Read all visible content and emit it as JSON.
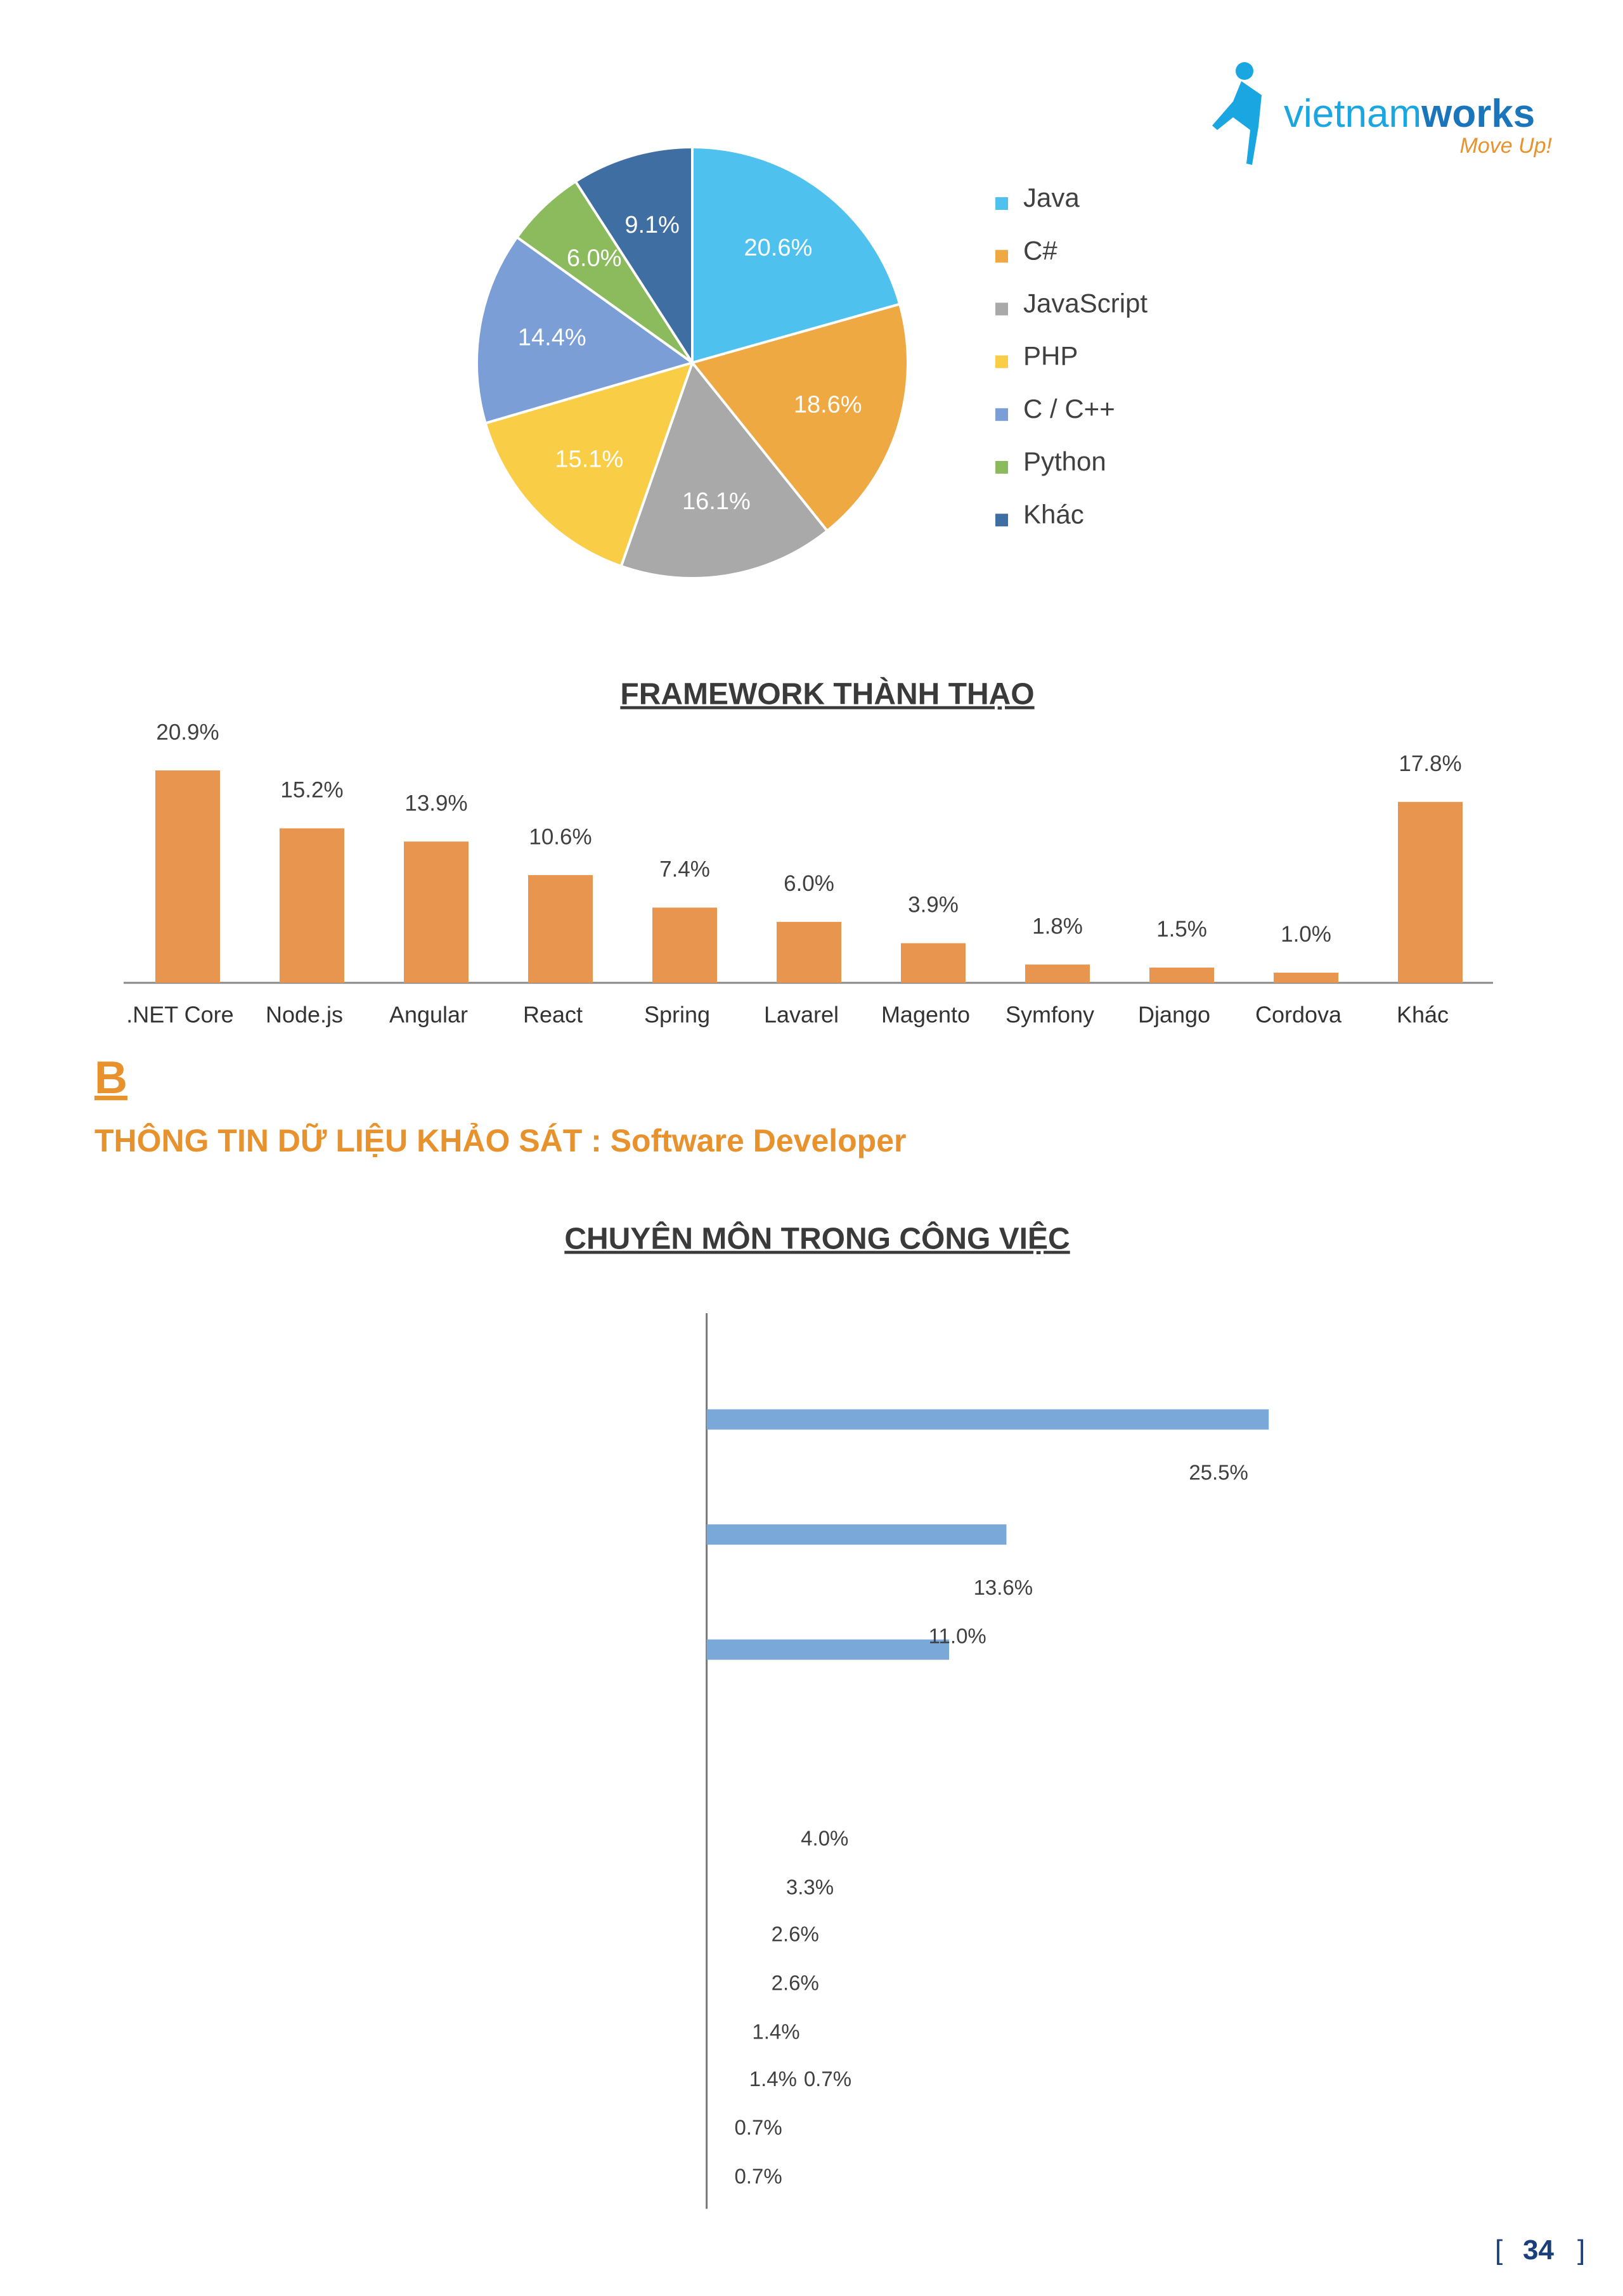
{
  "header": {
    "brand_light": "vietnam",
    "brand_bold": "works",
    "slogan": "Move Up!"
  },
  "chart_data": [
    {
      "type": "pie",
      "categories": [
        "Java",
        "C#",
        "JavaScript",
        "PHP",
        "C / C++",
        "Python",
        "Khác"
      ],
      "values": [
        20.6,
        18.6,
        16.1,
        15.1,
        14.4,
        6.0,
        9.1
      ],
      "value_labels": [
        "20.6%",
        "18.6%",
        "16.1%",
        "15.1%",
        "14.4%",
        "6.0%",
        "9.1%"
      ],
      "colors": [
        "#4fc1ef",
        "#eea942",
        "#a9a9a9",
        "#f9cd46",
        "#7b9ed6",
        "#8cbb5e",
        "#3f6ea2"
      ],
      "legend": "right"
    },
    {
      "type": "bar",
      "title": "FRAMEWORK THÀNH THẠO",
      "categories": [
        ".NET Core",
        "Node.js",
        "Angular",
        "React",
        "Spring",
        "Lavarel",
        "Magento",
        "Symfony",
        "Django",
        "Cordova",
        "Khác"
      ],
      "values": [
        20.9,
        15.2,
        13.9,
        10.6,
        7.4,
        6.0,
        3.9,
        1.8,
        1.5,
        1.0,
        17.8
      ],
      "value_labels": [
        "20.9%",
        "15.2%",
        "13.9%",
        "10.6%",
        "7.4%",
        "6.0%",
        "3.9%",
        "1.8%",
        "1.5%",
        "1.0%",
        "17.8%"
      ],
      "color": "#e8964f"
    },
    {
      "type": "hbar",
      "title": "CHUYÊN MÔN TRONG CÔNG VIỆC",
      "categories": [
        null,
        null,
        null,
        null,
        null,
        null,
        null,
        null,
        null,
        null,
        null,
        null
      ],
      "values": [
        25.5,
        13.6,
        11.0,
        4.0,
        3.3,
        2.6,
        2.6,
        1.4,
        1.4,
        0.7,
        0.7,
        0.7
      ],
      "value_labels": [
        "25.5%",
        "13.6%",
        "11.0%",
        "4.0%",
        "3.3%",
        "2.6%",
        "2.6%",
        "1.4%",
        "1.4%",
        "0.7%",
        "0.7%",
        "0.7%"
      ],
      "color": "#7aa8d8"
    }
  ],
  "section": {
    "letter": "B",
    "title": "THÔNG TIN DỮ LIỆU KHẢO SÁT : Software Developer"
  },
  "page_number": {
    "open": "[",
    "number": "34",
    "close": "]"
  }
}
